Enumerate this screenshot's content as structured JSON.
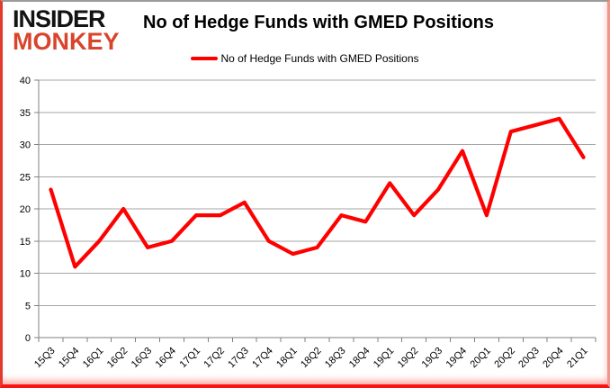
{
  "logo": {
    "line1": "INSIDER",
    "line2": "MONKEY"
  },
  "header": {
    "title": "No of Hedge Funds with GMED Positions"
  },
  "legend": {
    "label": "No of Hedge Funds with GMED Positions"
  },
  "colors": {
    "line": "#ff0000",
    "grid": "#a6a6a6",
    "axis": "#808080",
    "logo_black": "#131313",
    "logo_red": "#d8452c",
    "frame_red": "#e23b2c",
    "frame_top_grey": "#9a9a9a"
  },
  "chart_data": {
    "type": "line",
    "title": "No of Hedge Funds with GMED Positions",
    "categories": [
      "15Q3",
      "15Q4",
      "16Q1",
      "16Q2",
      "16Q3",
      "16Q4",
      "17Q1",
      "17Q2",
      "17Q3",
      "17Q4",
      "18Q1",
      "18Q2",
      "18Q3",
      "18Q4",
      "19Q1",
      "19Q2",
      "19Q3",
      "19Q4",
      "20Q1",
      "20Q2",
      "20Q3",
      "20Q4",
      "21Q1"
    ],
    "values": [
      23,
      11,
      15,
      20,
      14,
      15,
      19,
      19,
      21,
      15,
      13,
      14,
      19,
      18,
      24,
      19,
      23,
      29,
      19,
      32,
      33,
      34,
      28
    ],
    "series_name": "No of Hedge Funds with GMED Positions",
    "series_color": "#ff0000",
    "xlabel": "",
    "ylabel": "",
    "ylim": [
      0,
      40
    ],
    "yticks": [
      0,
      5,
      10,
      15,
      20,
      25,
      30,
      35,
      40
    ],
    "grid": true,
    "legend_position": "top"
  }
}
